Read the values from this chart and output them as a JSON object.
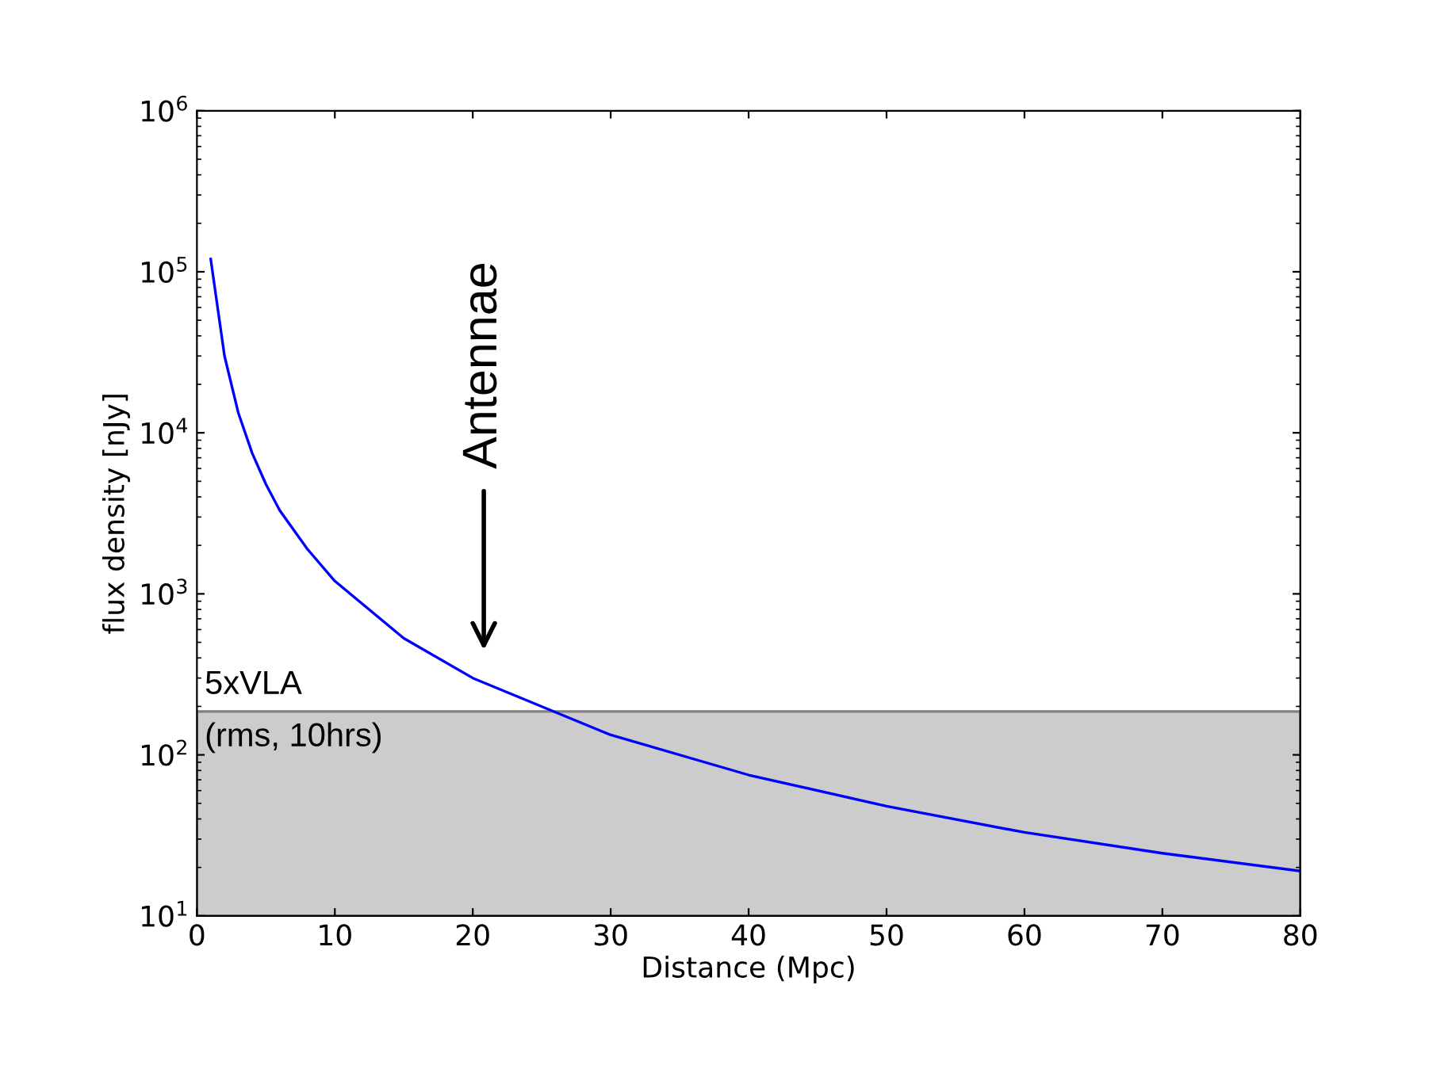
{
  "chart_data": {
    "type": "line",
    "xlabel": "Distance (Mpc)",
    "ylabel": "flux density [nJy]",
    "x": [
      1,
      2,
      3,
      4,
      5,
      6,
      8,
      10,
      15,
      20,
      30,
      40,
      50,
      60,
      70,
      80
    ],
    "series": [
      {
        "color": "#0000ff",
        "values": [
          120000,
          30000,
          13300,
          7500,
          4800,
          3300,
          1900,
          1200,
          530,
          300,
          133,
          75,
          48,
          33,
          24.5,
          19
        ]
      }
    ],
    "log": "y",
    "xlim": [
      0,
      80
    ],
    "ylim": [
      10,
      1000000
    ],
    "xticks": [
      0,
      10,
      20,
      30,
      40,
      50,
      60,
      70,
      80
    ],
    "yticks": [
      {
        "value": 10,
        "label": "10$^{1}$"
      },
      {
        "value": 100,
        "label": "10$^{2}$"
      },
      {
        "value": 1000,
        "label": "10$^{3}$"
      },
      {
        "value": 10000,
        "label": "10$^{4}$"
      },
      {
        "value": 100000,
        "label": "10$^{5}$"
      },
      {
        "value": 1000000,
        "label": "10$^{6}$"
      }
    ],
    "bands": [
      {
        "axis": "y",
        "from": 10,
        "to": 186,
        "label": "5xVLA\n(rms, 10hrs)",
        "color": "#cccccc"
      }
    ],
    "annotations": [
      "Antennae"
    ],
    "grid": false,
    "legend": false,
    "marker": "none",
    "line_style": "solid"
  }
}
